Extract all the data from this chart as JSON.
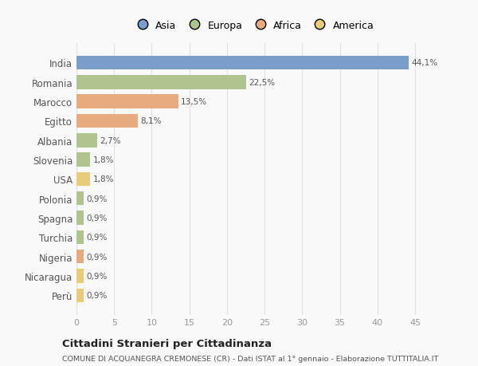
{
  "categories": [
    "India",
    "Romania",
    "Marocco",
    "Egitto",
    "Albania",
    "Slovenia",
    "USA",
    "Polonia",
    "Spagna",
    "Turchia",
    "Nigeria",
    "Nicaragua",
    "Perù"
  ],
  "values": [
    44.1,
    22.5,
    13.5,
    8.1,
    2.7,
    1.8,
    1.8,
    0.9,
    0.9,
    0.9,
    0.9,
    0.9,
    0.9
  ],
  "labels": [
    "44,1%",
    "22,5%",
    "13,5%",
    "8,1%",
    "2,7%",
    "1,8%",
    "1,8%",
    "0,9%",
    "0,9%",
    "0,9%",
    "0,9%",
    "0,9%",
    "0,9%"
  ],
  "colors": [
    "#7b9dc9",
    "#b0c490",
    "#e8aa7e",
    "#e8aa7e",
    "#b0c490",
    "#b0c490",
    "#e8cc7a",
    "#b0c490",
    "#b0c490",
    "#b0c490",
    "#e8aa7e",
    "#e8cc7a",
    "#e8cc7a"
  ],
  "legend_labels": [
    "Asia",
    "Europa",
    "Africa",
    "America"
  ],
  "legend_colors": [
    "#7b9dc9",
    "#b0c490",
    "#e8aa7e",
    "#e8cc7a"
  ],
  "title": "Cittadini Stranieri per Cittadinanza",
  "subtitle": "COMUNE DI ACQUANEGRA CREMONESE (CR) - Dati ISTAT al 1° gennaio - Elaborazione TUTTITALIA.IT",
  "xlim_max": 47,
  "xticks": [
    0,
    5,
    10,
    15,
    20,
    25,
    30,
    35,
    40,
    45
  ],
  "background_color": "#f9f9f9",
  "grid_color": "#e0e0e0",
  "label_color": "#555555",
  "tick_color": "#999999"
}
